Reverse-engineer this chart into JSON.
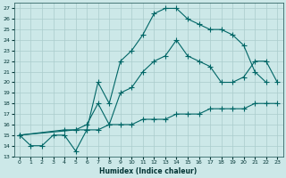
{
  "xlabel": "Humidex (Indice chaleur)",
  "bg_color": "#cce8e8",
  "grid_color": "#aacccc",
  "line_color": "#006666",
  "xlim": [
    -0.5,
    23.5
  ],
  "ylim": [
    13,
    27.5
  ],
  "xticks": [
    0,
    1,
    2,
    3,
    4,
    5,
    6,
    7,
    8,
    9,
    10,
    11,
    12,
    13,
    14,
    15,
    16,
    17,
    18,
    19,
    20,
    21,
    22,
    23
  ],
  "yticks": [
    13,
    14,
    15,
    16,
    17,
    18,
    19,
    20,
    21,
    22,
    23,
    24,
    25,
    26,
    27
  ],
  "line1_x": [
    0,
    1,
    2,
    3,
    4,
    5,
    6,
    7,
    8,
    9,
    10,
    11,
    12,
    13,
    14,
    15,
    16,
    17,
    18,
    19,
    20,
    21,
    22
  ],
  "line1_y": [
    15,
    14,
    14,
    15,
    15,
    13.5,
    15.5,
    20,
    18,
    22,
    23,
    24.5,
    26.5,
    27,
    27,
    26,
    25.5,
    25,
    25,
    24.5,
    23.5,
    21,
    20
  ],
  "line2_x": [
    0,
    4,
    5,
    6,
    7,
    8,
    9,
    10,
    11,
    12,
    13,
    14,
    15,
    16,
    17,
    18,
    19,
    20,
    21,
    22,
    23
  ],
  "line2_y": [
    15,
    15.5,
    15.5,
    16,
    18,
    16,
    19,
    19.5,
    21,
    22,
    22.5,
    24,
    22.5,
    22,
    21.5,
    20,
    20,
    20.5,
    22,
    22,
    20
  ],
  "line3_x": [
    0,
    5,
    6,
    7,
    8,
    9,
    10,
    11,
    12,
    13,
    14,
    15,
    16,
    17,
    18,
    19,
    20,
    21,
    22,
    23
  ],
  "line3_y": [
    15,
    15.5,
    15.5,
    15.5,
    16,
    16,
    16,
    16.5,
    16.5,
    16.5,
    17,
    17,
    17,
    17.5,
    17.5,
    17.5,
    17.5,
    18,
    18,
    18
  ],
  "marker_size": 2.5,
  "linewidth": 0.8
}
